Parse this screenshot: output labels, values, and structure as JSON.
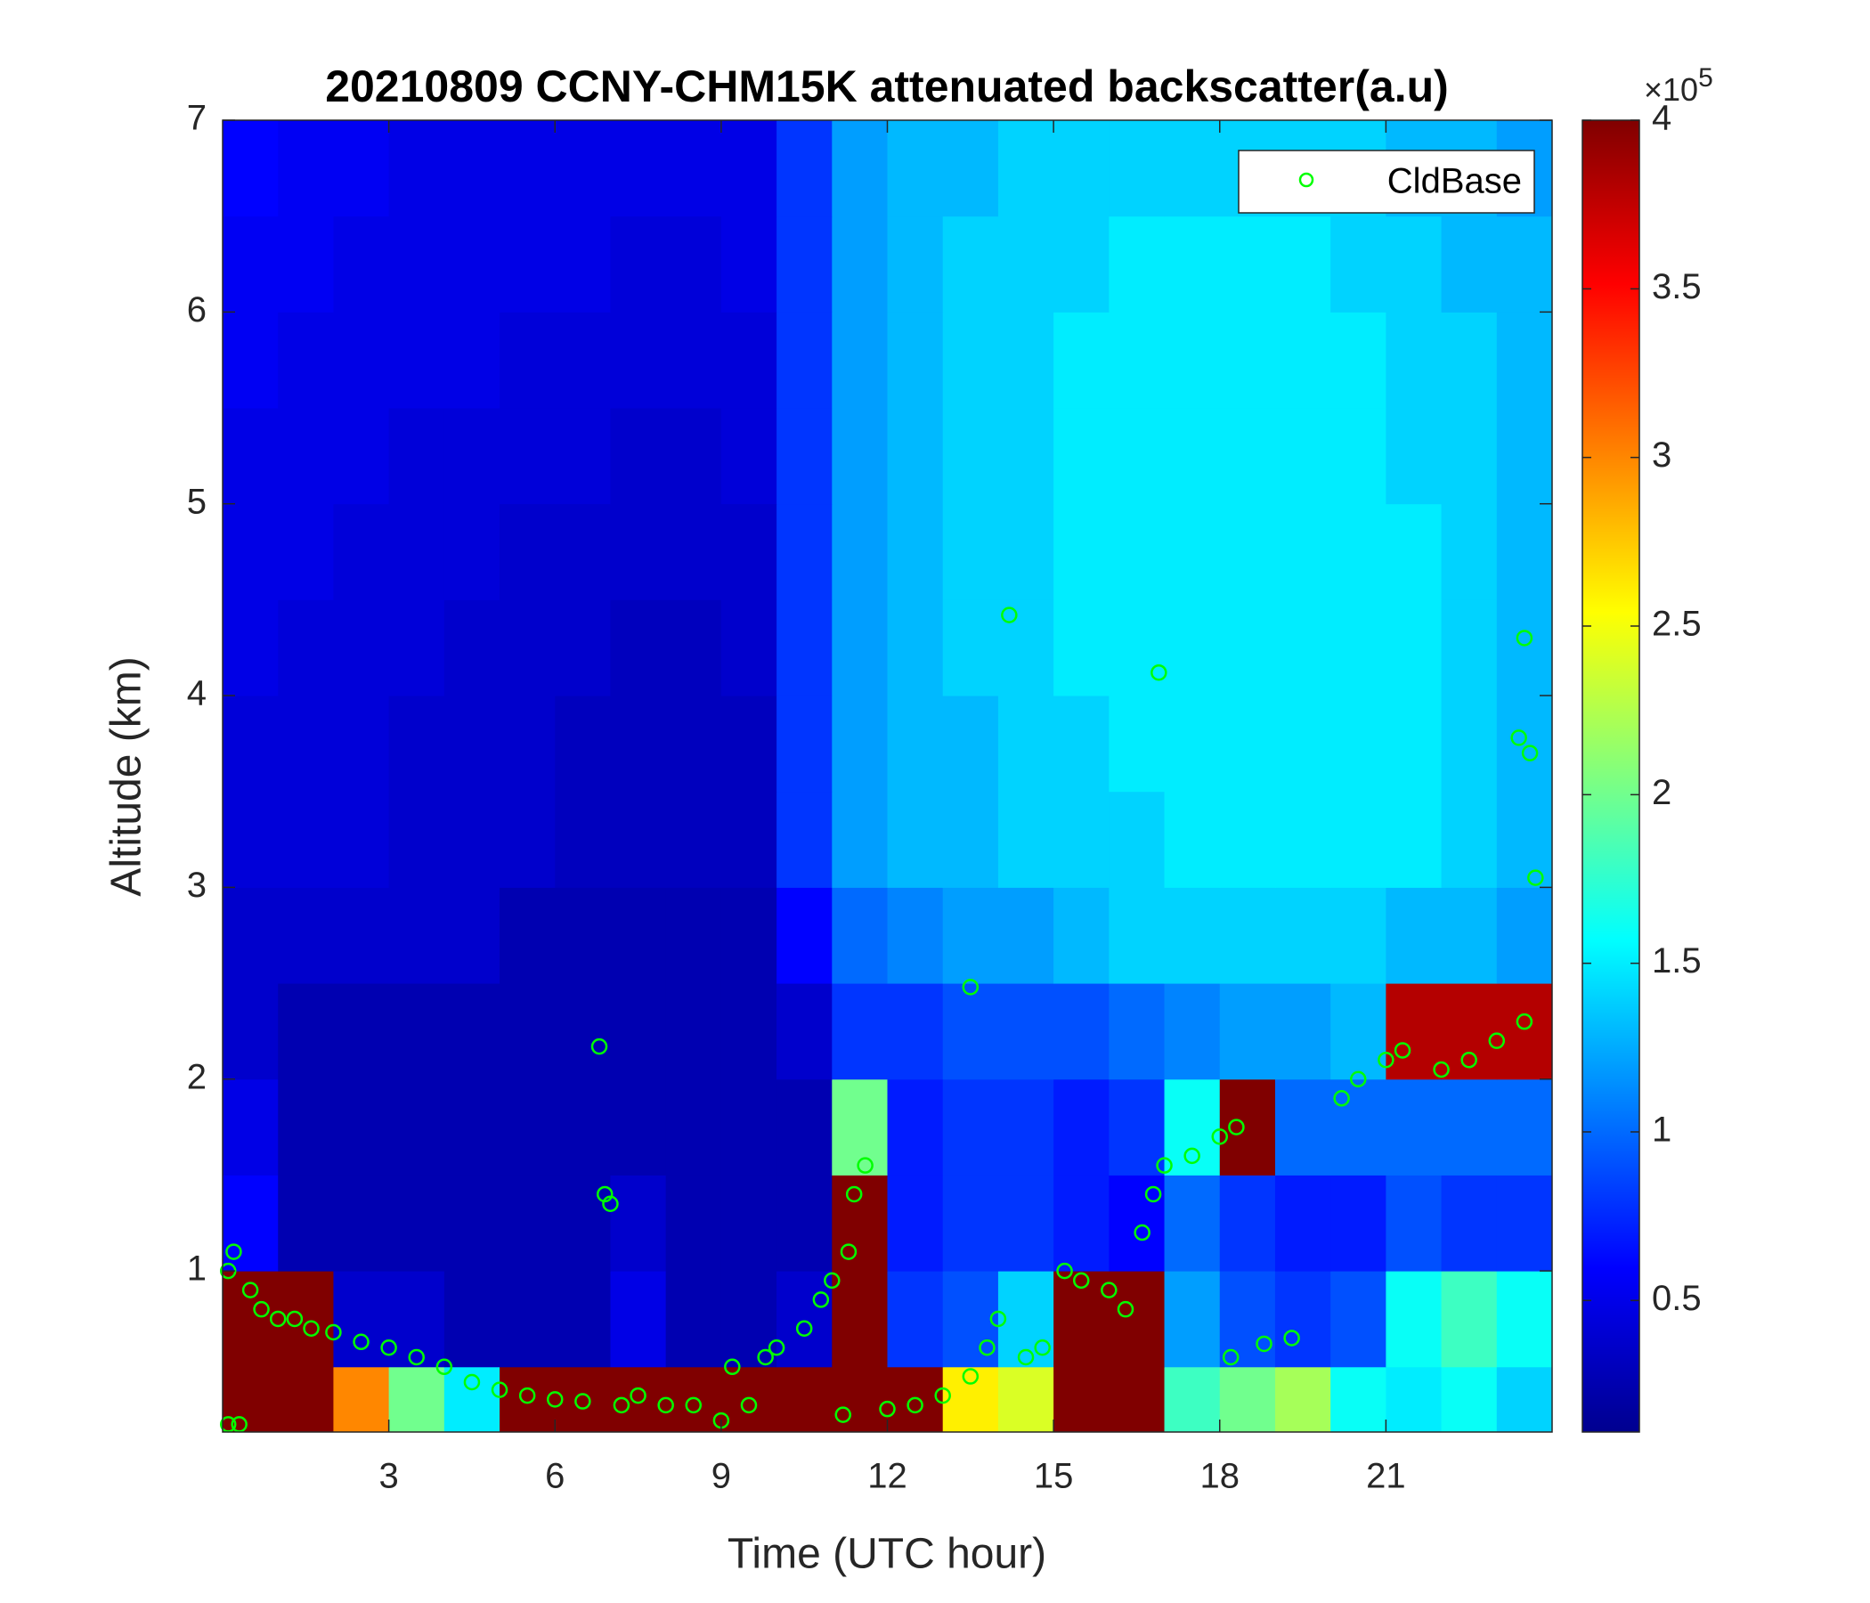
{
  "chart_data": {
    "type": "heatmap",
    "title": "20210809 CCNY-CHM15K attenuated backscatter(a.u)",
    "x_label": "Time (UTC hour)",
    "y_label": "Altitude (km)",
    "xlim": [
      0,
      24
    ],
    "ylim": [
      0.16,
      7
    ],
    "xticks": [
      3,
      6,
      9,
      12,
      15,
      18,
      21
    ],
    "yticks": [
      1,
      2,
      3,
      4,
      5,
      6,
      7
    ],
    "colormap": "jet",
    "zlim": [
      0.11,
      4
    ],
    "zticks": [
      0.5,
      1,
      1.5,
      2,
      2.5,
      3,
      3.5,
      4
    ],
    "colorbar_scale": {
      "base": "×10",
      "exponent": "5"
    },
    "x_edges": [
      0,
      1,
      2,
      3,
      4,
      5,
      6,
      7,
      8,
      9,
      10,
      11,
      12,
      13,
      14,
      15,
      16,
      17,
      18,
      19,
      20,
      21,
      22,
      23,
      24
    ],
    "y_edges": [
      0.16,
      0.5,
      1,
      1.5,
      2,
      2.5,
      3,
      3.5,
      4,
      4.5,
      5,
      5.5,
      6,
      6.5,
      7
    ],
    "z": [
      [
        4,
        4,
        3,
        2,
        1.5,
        4,
        4,
        4,
        4,
        4,
        4,
        4,
        4,
        2.6,
        2.4,
        4,
        4,
        1.8,
        2,
        2.2,
        1.6,
        1.5,
        1.6,
        1.4
      ],
      [
        4,
        4,
        0.4,
        0.4,
        0.3,
        0.3,
        0.3,
        0.5,
        0.3,
        0.3,
        0.4,
        4,
        0.8,
        0.9,
        1.4,
        4,
        4,
        1.2,
        0.9,
        0.8,
        0.9,
        1.6,
        1.8,
        1.6
      ],
      [
        0.6,
        0.3,
        0.3,
        0.3,
        0.3,
        0.3,
        0.3,
        0.4,
        0.3,
        0.3,
        0.3,
        4,
        0.7,
        0.8,
        0.8,
        0.7,
        0.6,
        1,
        0.8,
        0.7,
        0.7,
        0.9,
        0.8,
        0.8
      ],
      [
        0.5,
        0.3,
        0.3,
        0.3,
        0.3,
        0.3,
        0.3,
        0.3,
        0.3,
        0.3,
        0.3,
        2,
        0.7,
        0.8,
        0.8,
        0.7,
        0.8,
        1.6,
        4,
        1,
        1,
        1,
        1,
        1
      ],
      [
        0.4,
        0.3,
        0.3,
        0.3,
        0.3,
        0.3,
        0.3,
        0.3,
        0.3,
        0.3,
        0.4,
        0.8,
        0.8,
        0.9,
        0.9,
        0.9,
        1,
        1.1,
        1.2,
        1.2,
        1.3,
        3.8,
        3.8,
        3.8
      ],
      [
        0.4,
        0.4,
        0.4,
        0.4,
        0.4,
        0.3,
        0.3,
        0.3,
        0.3,
        0.3,
        0.6,
        1,
        1.1,
        1.2,
        1.2,
        1.3,
        1.4,
        1.4,
        1.4,
        1.4,
        1.4,
        1.3,
        1.3,
        1.2
      ],
      [
        0.45,
        0.45,
        0.45,
        0.4,
        0.4,
        0.4,
        0.35,
        0.35,
        0.35,
        0.35,
        0.8,
        1.2,
        1.3,
        1.3,
        1.4,
        1.4,
        1.4,
        1.5,
        1.5,
        1.5,
        1.5,
        1.5,
        1.4,
        1.3
      ],
      [
        0.45,
        0.45,
        0.45,
        0.4,
        0.4,
        0.4,
        0.35,
        0.35,
        0.35,
        0.35,
        0.8,
        1.2,
        1.3,
        1.3,
        1.4,
        1.4,
        1.5,
        1.5,
        1.5,
        1.5,
        1.5,
        1.5,
        1.4,
        1.3
      ],
      [
        0.5,
        0.45,
        0.45,
        0.45,
        0.4,
        0.4,
        0.4,
        0.35,
        0.35,
        0.4,
        0.8,
        1.2,
        1.3,
        1.4,
        1.4,
        1.5,
        1.5,
        1.5,
        1.5,
        1.5,
        1.5,
        1.5,
        1.4,
        1.3
      ],
      [
        0.5,
        0.5,
        0.45,
        0.45,
        0.45,
        0.4,
        0.4,
        0.4,
        0.4,
        0.4,
        0.8,
        1.2,
        1.3,
        1.4,
        1.4,
        1.5,
        1.5,
        1.5,
        1.5,
        1.5,
        1.5,
        1.5,
        1.4,
        1.3
      ],
      [
        0.5,
        0.5,
        0.5,
        0.45,
        0.45,
        0.45,
        0.45,
        0.4,
        0.4,
        0.45,
        0.8,
        1.2,
        1.3,
        1.4,
        1.4,
        1.5,
        1.5,
        1.5,
        1.5,
        1.5,
        1.5,
        1.4,
        1.4,
        1.3
      ],
      [
        0.55,
        0.5,
        0.5,
        0.5,
        0.5,
        0.45,
        0.45,
        0.45,
        0.45,
        0.45,
        0.8,
        1.2,
        1.3,
        1.4,
        1.4,
        1.5,
        1.5,
        1.5,
        1.5,
        1.5,
        1.5,
        1.4,
        1.4,
        1.3
      ],
      [
        0.55,
        0.55,
        0.5,
        0.5,
        0.5,
        0.5,
        0.5,
        0.45,
        0.45,
        0.5,
        0.8,
        1.2,
        1.3,
        1.4,
        1.4,
        1.4,
        1.5,
        1.5,
        1.5,
        1.5,
        1.4,
        1.4,
        1.3,
        1.3
      ],
      [
        0.6,
        0.55,
        0.55,
        0.5,
        0.5,
        0.5,
        0.5,
        0.5,
        0.5,
        0.5,
        0.8,
        1.2,
        1.3,
        1.3,
        1.4,
        1.4,
        1.4,
        1.4,
        1.4,
        1.4,
        1.4,
        1.3,
        1.3,
        1.2
      ]
    ],
    "legend": "upper right",
    "series": [
      {
        "name": "CldBase",
        "type": "scatter",
        "color": "#00ff00",
        "x": [
          0.1,
          0.2,
          0.1,
          0.3,
          0.5,
          0.7,
          1,
          1.3,
          1.6,
          2,
          2.5,
          3,
          3.5,
          4,
          4.5,
          5,
          5.5,
          6,
          6.5,
          6.8,
          6.9,
          7,
          7.2,
          7.5,
          8,
          8.5,
          9,
          9.5,
          9.2,
          9.8,
          10,
          10.5,
          10.8,
          11,
          11.3,
          11.4,
          11.6,
          11.2,
          12,
          12.5,
          13,
          13.5,
          13.5,
          13.8,
          14,
          14.2,
          14.5,
          14.8,
          15.2,
          15.5,
          16,
          16.3,
          16.6,
          16.8,
          16.9,
          17,
          17.5,
          18,
          18.3,
          18.2,
          18.8,
          19.3,
          20.2,
          20.5,
          21,
          21.3,
          22,
          22.5,
          23,
          23.5,
          23.4,
          23.6,
          23.7,
          23.5
        ],
        "y": [
          1,
          1.1,
          0.2,
          0.2,
          0.9,
          0.8,
          0.75,
          0.75,
          0.7,
          0.68,
          0.63,
          0.6,
          0.55,
          0.5,
          0.42,
          0.38,
          0.35,
          0.33,
          0.32,
          2.17,
          1.4,
          1.35,
          0.3,
          0.35,
          0.3,
          0.3,
          0.22,
          0.3,
          0.5,
          0.55,
          0.6,
          0.7,
          0.85,
          0.95,
          1.1,
          1.4,
          1.55,
          0.25,
          0.28,
          0.3,
          0.35,
          0.45,
          2.48,
          0.6,
          0.75,
          4.42,
          0.55,
          0.6,
          1,
          0.95,
          0.9,
          0.8,
          1.2,
          1.4,
          4.12,
          1.55,
          1.6,
          1.7,
          1.75,
          0.55,
          0.62,
          0.65,
          1.9,
          2,
          2.1,
          2.15,
          2.05,
          2.1,
          2.2,
          2.3,
          3.78,
          3.7,
          3.05,
          4.3
        ]
      }
    ]
  }
}
